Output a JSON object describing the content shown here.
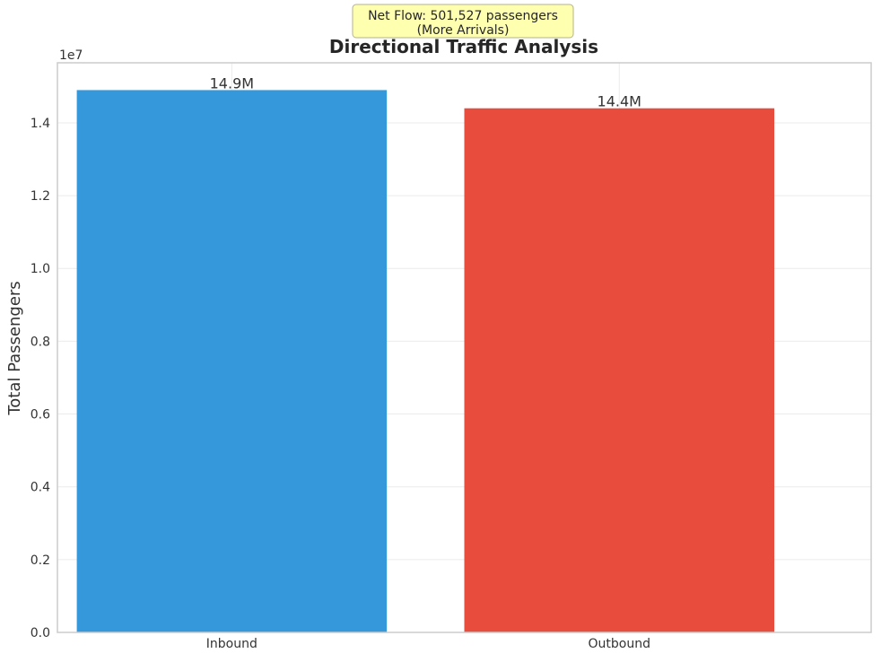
{
  "chart_data": {
    "type": "bar",
    "title": "Directional Traffic Analysis",
    "xlabel": "",
    "ylabel": "Total Passengers",
    "scale_label": "1e7",
    "categories": [
      "Inbound",
      "Outbound"
    ],
    "values": [
      14900000,
      14400000
    ],
    "value_labels": [
      "14.9M",
      "14.4M"
    ],
    "colors": [
      "#3498db",
      "#e74c3c"
    ],
    "ylim": [
      0,
      15650000
    ],
    "yticks": [
      0,
      2000000,
      4000000,
      6000000,
      8000000,
      10000000,
      12000000,
      14000000
    ],
    "ytick_labels": [
      "0.0",
      "0.2",
      "0.4",
      "0.6",
      "0.8",
      "1.0",
      "1.2",
      "1.4"
    ],
    "grid": true,
    "annotation": {
      "lines": [
        "Net Flow: 501,527 passengers",
        "(More Arrivals)"
      ],
      "background": "#ffffb0",
      "border": "#b3b38a"
    }
  }
}
